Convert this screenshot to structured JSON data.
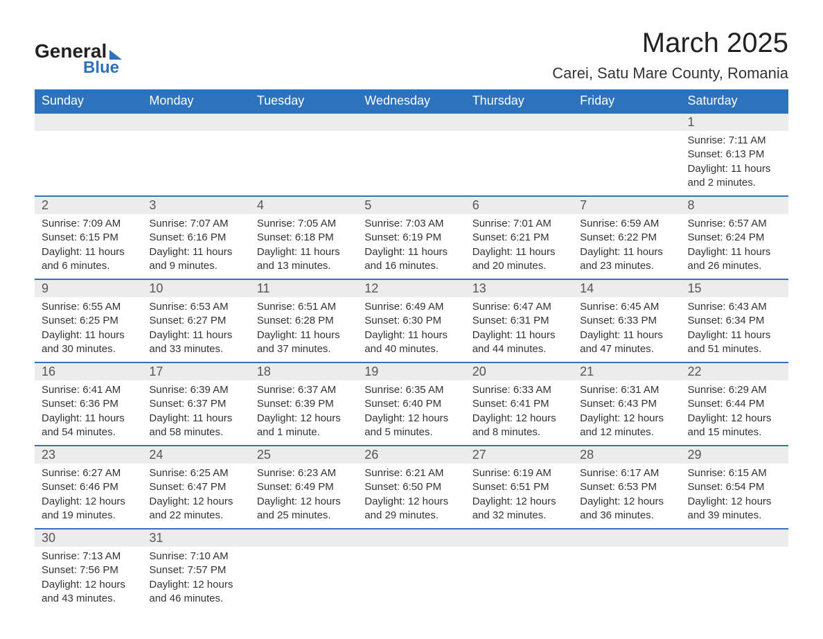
{
  "logo": {
    "word1": "General",
    "word2": "Blue"
  },
  "title": "March 2025",
  "location": "Carei, Satu Mare County, Romania",
  "theme": {
    "header_bg": "#2d72bb",
    "header_text": "#ffffff",
    "daynum_bg": "#ececec",
    "border_color": "#2d72bb",
    "body_text": "#333333",
    "title_fontsize": 40,
    "location_fontsize": 22,
    "dayheader_fontsize": 18,
    "cell_fontsize": 15
  },
  "day_headers": [
    "Sunday",
    "Monday",
    "Tuesday",
    "Wednesday",
    "Thursday",
    "Friday",
    "Saturday"
  ],
  "weeks": [
    [
      null,
      null,
      null,
      null,
      null,
      null,
      {
        "n": "1",
        "sunrise": "7:11 AM",
        "sunset": "6:13 PM",
        "daylight": "11 hours and 2 minutes."
      }
    ],
    [
      {
        "n": "2",
        "sunrise": "7:09 AM",
        "sunset": "6:15 PM",
        "daylight": "11 hours and 6 minutes."
      },
      {
        "n": "3",
        "sunrise": "7:07 AM",
        "sunset": "6:16 PM",
        "daylight": "11 hours and 9 minutes."
      },
      {
        "n": "4",
        "sunrise": "7:05 AM",
        "sunset": "6:18 PM",
        "daylight": "11 hours and 13 minutes."
      },
      {
        "n": "5",
        "sunrise": "7:03 AM",
        "sunset": "6:19 PM",
        "daylight": "11 hours and 16 minutes."
      },
      {
        "n": "6",
        "sunrise": "7:01 AM",
        "sunset": "6:21 PM",
        "daylight": "11 hours and 20 minutes."
      },
      {
        "n": "7",
        "sunrise": "6:59 AM",
        "sunset": "6:22 PM",
        "daylight": "11 hours and 23 minutes."
      },
      {
        "n": "8",
        "sunrise": "6:57 AM",
        "sunset": "6:24 PM",
        "daylight": "11 hours and 26 minutes."
      }
    ],
    [
      {
        "n": "9",
        "sunrise": "6:55 AM",
        "sunset": "6:25 PM",
        "daylight": "11 hours and 30 minutes."
      },
      {
        "n": "10",
        "sunrise": "6:53 AM",
        "sunset": "6:27 PM",
        "daylight": "11 hours and 33 minutes."
      },
      {
        "n": "11",
        "sunrise": "6:51 AM",
        "sunset": "6:28 PM",
        "daylight": "11 hours and 37 minutes."
      },
      {
        "n": "12",
        "sunrise": "6:49 AM",
        "sunset": "6:30 PM",
        "daylight": "11 hours and 40 minutes."
      },
      {
        "n": "13",
        "sunrise": "6:47 AM",
        "sunset": "6:31 PM",
        "daylight": "11 hours and 44 minutes."
      },
      {
        "n": "14",
        "sunrise": "6:45 AM",
        "sunset": "6:33 PM",
        "daylight": "11 hours and 47 minutes."
      },
      {
        "n": "15",
        "sunrise": "6:43 AM",
        "sunset": "6:34 PM",
        "daylight": "11 hours and 51 minutes."
      }
    ],
    [
      {
        "n": "16",
        "sunrise": "6:41 AM",
        "sunset": "6:36 PM",
        "daylight": "11 hours and 54 minutes."
      },
      {
        "n": "17",
        "sunrise": "6:39 AM",
        "sunset": "6:37 PM",
        "daylight": "11 hours and 58 minutes."
      },
      {
        "n": "18",
        "sunrise": "6:37 AM",
        "sunset": "6:39 PM",
        "daylight": "12 hours and 1 minute."
      },
      {
        "n": "19",
        "sunrise": "6:35 AM",
        "sunset": "6:40 PM",
        "daylight": "12 hours and 5 minutes."
      },
      {
        "n": "20",
        "sunrise": "6:33 AM",
        "sunset": "6:41 PM",
        "daylight": "12 hours and 8 minutes."
      },
      {
        "n": "21",
        "sunrise": "6:31 AM",
        "sunset": "6:43 PM",
        "daylight": "12 hours and 12 minutes."
      },
      {
        "n": "22",
        "sunrise": "6:29 AM",
        "sunset": "6:44 PM",
        "daylight": "12 hours and 15 minutes."
      }
    ],
    [
      {
        "n": "23",
        "sunrise": "6:27 AM",
        "sunset": "6:46 PM",
        "daylight": "12 hours and 19 minutes."
      },
      {
        "n": "24",
        "sunrise": "6:25 AM",
        "sunset": "6:47 PM",
        "daylight": "12 hours and 22 minutes."
      },
      {
        "n": "25",
        "sunrise": "6:23 AM",
        "sunset": "6:49 PM",
        "daylight": "12 hours and 25 minutes."
      },
      {
        "n": "26",
        "sunrise": "6:21 AM",
        "sunset": "6:50 PM",
        "daylight": "12 hours and 29 minutes."
      },
      {
        "n": "27",
        "sunrise": "6:19 AM",
        "sunset": "6:51 PM",
        "daylight": "12 hours and 32 minutes."
      },
      {
        "n": "28",
        "sunrise": "6:17 AM",
        "sunset": "6:53 PM",
        "daylight": "12 hours and 36 minutes."
      },
      {
        "n": "29",
        "sunrise": "6:15 AM",
        "sunset": "6:54 PM",
        "daylight": "12 hours and 39 minutes."
      }
    ],
    [
      {
        "n": "30",
        "sunrise": "7:13 AM",
        "sunset": "7:56 PM",
        "daylight": "12 hours and 43 minutes."
      },
      {
        "n": "31",
        "sunrise": "7:10 AM",
        "sunset": "7:57 PM",
        "daylight": "12 hours and 46 minutes."
      },
      null,
      null,
      null,
      null,
      null
    ]
  ],
  "labels": {
    "sunrise": "Sunrise: ",
    "sunset": "Sunset: ",
    "daylight": "Daylight: "
  }
}
